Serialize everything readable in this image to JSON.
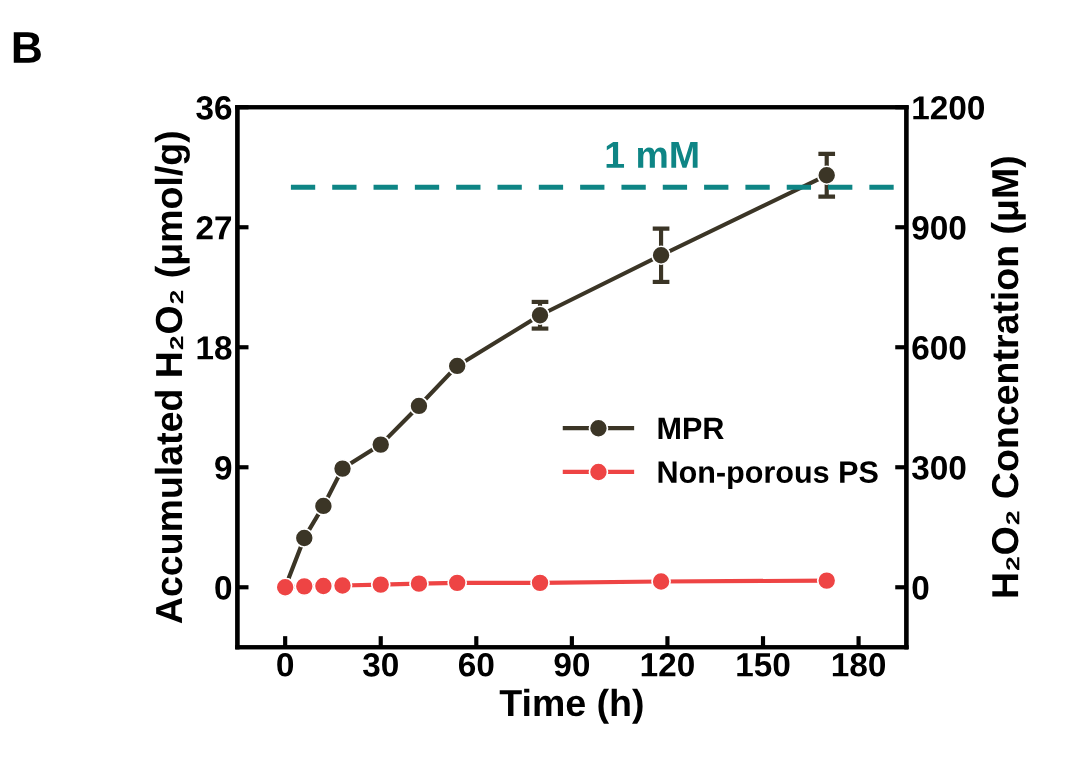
{
  "chart_data": {
    "type": "line",
    "annotations": [
      "B"
    ],
    "xlabel": "Time (h)",
    "ylabel": "Accumulated H₂O₂ (μmol/g)",
    "y2label": "H₂O₂ Concentration (μM)",
    "x": [
      0,
      6,
      12,
      18,
      30,
      42,
      54,
      80,
      118,
      170
    ],
    "series": [
      {
        "name": "MPR",
        "color": "#3b3526",
        "values": [
          0,
          3.7,
          6.1,
          8.9,
          10.7,
          13.6,
          16.6,
          20.4,
          24.9,
          30.9
        ],
        "errors": [
          null,
          null,
          null,
          null,
          null,
          null,
          null,
          1.0,
          2.0,
          1.6
        ]
      },
      {
        "name": "Non-porous PS",
        "color": "#ee4444",
        "values": [
          0,
          0.07,
          0.1,
          0.13,
          0.2,
          0.27,
          0.33,
          0.33,
          0.43,
          0.5
        ]
      }
    ],
    "xlim": [
      -15,
      195
    ],
    "xticks": [
      0,
      30,
      60,
      90,
      120,
      150,
      180
    ],
    "ylim": [
      -4.5,
      36
    ],
    "yticks": [
      0,
      9,
      18,
      27,
      36
    ],
    "y2lim": [
      -150,
      1200
    ],
    "y2ticks": [
      0,
      300,
      600,
      900,
      1200
    ],
    "ref_lines": [
      {
        "axis": "y2",
        "value": 1000,
        "label": "1 mM",
        "color": "#0e8585",
        "line_style": "dashed"
      }
    ],
    "marker": "circle",
    "line_style": "solid",
    "legend": "right",
    "grid": false
  }
}
